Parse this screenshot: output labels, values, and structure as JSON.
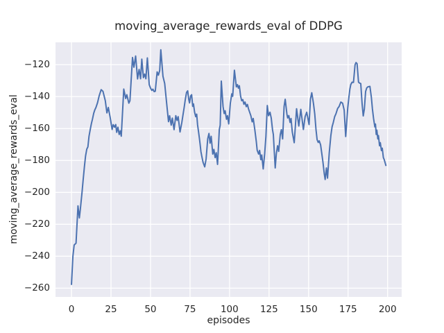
{
  "colors": {
    "figure_bg": "#ffffff",
    "axes_bg": "#eaeaf2",
    "grid": "#ffffff",
    "line": "#4c72b0",
    "text": "#262626"
  },
  "chart_data": {
    "type": "line",
    "title": "moving_average_rewards_eval of DDPG",
    "xlabel": "episodes",
    "ylabel": "moving_average_rewards_eval",
    "x_ticks": [
      0,
      25,
      50,
      75,
      100,
      125,
      150,
      175,
      200
    ],
    "y_ticks": [
      -120,
      -140,
      -160,
      -180,
      -200,
      -220,
      -240,
      -260
    ],
    "xlim": [
      -10.1,
      208.9
    ],
    "ylim": [
      -265.5,
      -106
    ],
    "grid": true,
    "legend": false,
    "series": [
      {
        "name": "moving_average_rewards_eval",
        "color": "#4c72b0",
        "points": [
          [
            0,
            -258
          ],
          [
            0.9,
            -240
          ],
          [
            1.7,
            -233
          ],
          [
            2.9,
            -231.8
          ],
          [
            4.1,
            -208.5
          ],
          [
            5,
            -216
          ],
          [
            5.6,
            -210.6
          ],
          [
            6.7,
            -199.7
          ],
          [
            7.4,
            -192
          ],
          [
            8.2,
            -183.8
          ],
          [
            8.9,
            -177.3
          ],
          [
            9.7,
            -172.9
          ],
          [
            10.4,
            -171.5
          ],
          [
            11.1,
            -164.9
          ],
          [
            11.9,
            -160.6
          ],
          [
            12.6,
            -157
          ],
          [
            13.3,
            -154.1
          ],
          [
            14.1,
            -150.4
          ],
          [
            14.8,
            -148.3
          ],
          [
            15.5,
            -146.8
          ],
          [
            16.5,
            -143.8
          ],
          [
            17.5,
            -139.6
          ],
          [
            18.8,
            -135.7
          ],
          [
            19.9,
            -136.7
          ],
          [
            21.4,
            -142.6
          ],
          [
            22.4,
            -150.2
          ],
          [
            23.3,
            -146.8
          ],
          [
            24.5,
            -153
          ],
          [
            25.7,
            -160.6
          ],
          [
            26.4,
            -157.6
          ],
          [
            27.3,
            -159.2
          ],
          [
            28,
            -157.5
          ],
          [
            28.6,
            -162.4
          ],
          [
            29.4,
            -159.2
          ],
          [
            30.2,
            -163.7
          ],
          [
            30.9,
            -161.5
          ],
          [
            31.5,
            -164.8
          ],
          [
            33.1,
            -135.3
          ],
          [
            34.3,
            -141.2
          ],
          [
            35,
            -138.8
          ],
          [
            36.3,
            -144.1
          ],
          [
            37,
            -142.6
          ],
          [
            38.6,
            -115.5
          ],
          [
            39.5,
            -121.6
          ],
          [
            40.6,
            -114.6
          ],
          [
            41.8,
            -128.9
          ],
          [
            42.8,
            -123
          ],
          [
            43.7,
            -128.8
          ],
          [
            44.5,
            -116.5
          ],
          [
            45.5,
            -128.1
          ],
          [
            46.3,
            -125.9
          ],
          [
            47.1,
            -128.8
          ],
          [
            48,
            -115.8
          ],
          [
            49.2,
            -132.5
          ],
          [
            50,
            -134.6
          ],
          [
            50.8,
            -136.1
          ],
          [
            51.5,
            -135.4
          ],
          [
            52.3,
            -136.9
          ],
          [
            53,
            -136.7
          ],
          [
            54.2,
            -124.5
          ],
          [
            55,
            -126.6
          ],
          [
            55.8,
            -123.7
          ],
          [
            56.5,
            -110.7
          ],
          [
            57.9,
            -127.3
          ],
          [
            59,
            -131.8
          ],
          [
            60.2,
            -144.1
          ],
          [
            61.4,
            -155.7
          ],
          [
            62.1,
            -152
          ],
          [
            63.1,
            -157.9
          ],
          [
            63.8,
            -153.5
          ],
          [
            64.9,
            -160.7
          ],
          [
            66,
            -152
          ],
          [
            66.8,
            -154.9
          ],
          [
            67.5,
            -152.6
          ],
          [
            68.7,
            -162.2
          ],
          [
            69.8,
            -156.2
          ],
          [
            70.6,
            -151.1
          ],
          [
            71.3,
            -146.7
          ],
          [
            72,
            -141.8
          ],
          [
            72.8,
            -137.4
          ],
          [
            73.5,
            -136.4
          ],
          [
            74.2,
            -141.8
          ],
          [
            74.7,
            -144
          ],
          [
            75.4,
            -139.6
          ],
          [
            76,
            -138.8
          ],
          [
            76.7,
            -146.1
          ],
          [
            77.2,
            -144.6
          ],
          [
            77.9,
            -149.7
          ],
          [
            78.6,
            -152.6
          ],
          [
            79.2,
            -151
          ],
          [
            79.8,
            -157.7
          ],
          [
            80.4,
            -162.1
          ],
          [
            80.9,
            -165.7
          ],
          [
            81.4,
            -170
          ],
          [
            81.9,
            -174.4
          ],
          [
            82.4,
            -177.2
          ],
          [
            83.2,
            -181
          ],
          [
            84.3,
            -184
          ],
          [
            85.2,
            -179
          ],
          [
            86.2,
            -166.5
          ],
          [
            87,
            -163.1
          ],
          [
            87.7,
            -169.2
          ],
          [
            88.4,
            -164.9
          ],
          [
            89.4,
            -176
          ],
          [
            90.1,
            -173.1
          ],
          [
            90.9,
            -178.2
          ],
          [
            91.6,
            -175.2
          ],
          [
            92.4,
            -182.5
          ],
          [
            93.5,
            -160.7
          ],
          [
            94.1,
            -157.9
          ],
          [
            94.8,
            -130.3
          ],
          [
            95.9,
            -146.2
          ],
          [
            96.6,
            -150.6
          ],
          [
            97.2,
            -148.9
          ],
          [
            98.1,
            -154.2
          ],
          [
            98.7,
            -152
          ],
          [
            99.5,
            -157.1
          ],
          [
            100.5,
            -144.1
          ],
          [
            101.4,
            -138.3
          ],
          [
            102,
            -139.8
          ],
          [
            103.1,
            -123.5
          ],
          [
            104.3,
            -133.9
          ],
          [
            105,
            -132.5
          ],
          [
            105.6,
            -134.7
          ],
          [
            106.2,
            -133.2
          ],
          [
            107,
            -139.7
          ],
          [
            107.7,
            -142.6
          ],
          [
            108.4,
            -141.9
          ],
          [
            109.1,
            -144.8
          ],
          [
            109.8,
            -143.4
          ],
          [
            110.6,
            -146.3
          ],
          [
            111.3,
            -144.9
          ],
          [
            112,
            -147.7
          ],
          [
            113.5,
            -152
          ],
          [
            114.3,
            -155.8
          ],
          [
            115,
            -153.7
          ],
          [
            116,
            -160.7
          ],
          [
            116.9,
            -168
          ],
          [
            117.5,
            -173.6
          ],
          [
            118.4,
            -176
          ],
          [
            119,
            -173.7
          ],
          [
            119.8,
            -179.6
          ],
          [
            120.4,
            -176.6
          ],
          [
            121.3,
            -185.3
          ],
          [
            122.2,
            -175.8
          ],
          [
            123,
            -165
          ],
          [
            123.9,
            -145.6
          ],
          [
            124.7,
            -152
          ],
          [
            125.6,
            -149.8
          ],
          [
            126.4,
            -153.5
          ],
          [
            127.2,
            -160.7
          ],
          [
            127.7,
            -163.7
          ],
          [
            128.9,
            -184.7
          ],
          [
            129.6,
            -175.8
          ],
          [
            130.4,
            -170.8
          ],
          [
            131.1,
            -174.3
          ],
          [
            132.1,
            -163.7
          ],
          [
            132.8,
            -160.7
          ],
          [
            133.6,
            -166.5
          ],
          [
            134.5,
            -146.2
          ],
          [
            135.2,
            -141.7
          ],
          [
            136.3,
            -151.1
          ],
          [
            136.8,
            -153.4
          ],
          [
            137.5,
            -151.9
          ],
          [
            138.3,
            -156.2
          ],
          [
            138.9,
            -153.7
          ],
          [
            139.7,
            -162.1
          ],
          [
            140.9,
            -168.9
          ],
          [
            142.4,
            -147.6
          ],
          [
            143.8,
            -158.4
          ],
          [
            145.1,
            -148
          ],
          [
            146.7,
            -160.6
          ],
          [
            147.8,
            -152.6
          ],
          [
            148.8,
            -149.8
          ],
          [
            149.5,
            -153.4
          ],
          [
            150.3,
            -157.5
          ],
          [
            151.2,
            -141.5
          ],
          [
            152,
            -137.6
          ],
          [
            153.1,
            -144.5
          ],
          [
            153.9,
            -150.9
          ],
          [
            154.7,
            -160.7
          ],
          [
            155.4,
            -167
          ],
          [
            156.1,
            -168.7
          ],
          [
            156.7,
            -167.7
          ],
          [
            157.6,
            -170.2
          ],
          [
            158.3,
            -175.2
          ],
          [
            159.1,
            -181
          ],
          [
            159.9,
            -188.3
          ],
          [
            160.5,
            -191.9
          ],
          [
            161.3,
            -184.7
          ],
          [
            162,
            -191.1
          ],
          [
            163.1,
            -175.2
          ],
          [
            164.1,
            -164.4
          ],
          [
            164.9,
            -158.9
          ],
          [
            165.6,
            -156.4
          ],
          [
            166.5,
            -152.6
          ],
          [
            167.4,
            -150.6
          ],
          [
            168.4,
            -147.4
          ],
          [
            169.3,
            -146.2
          ],
          [
            170.4,
            -143.4
          ],
          [
            171.5,
            -144.1
          ],
          [
            172.5,
            -148.4
          ],
          [
            173.5,
            -165
          ],
          [
            174.8,
            -146.9
          ],
          [
            175.5,
            -140.4
          ],
          [
            176.1,
            -135.4
          ],
          [
            176.7,
            -132.5
          ],
          [
            177.5,
            -131
          ],
          [
            178.4,
            -131.1
          ],
          [
            179.4,
            -120.1
          ],
          [
            180,
            -118.7
          ],
          [
            180.7,
            -119.4
          ],
          [
            181.6,
            -131
          ],
          [
            182.4,
            -131.6
          ],
          [
            183,
            -131.8
          ],
          [
            183.9,
            -144.8
          ],
          [
            184.6,
            -152.1
          ],
          [
            185.3,
            -147.8
          ],
          [
            186.1,
            -136.8
          ],
          [
            186.8,
            -134.6
          ],
          [
            187.5,
            -133.9
          ],
          [
            188.8,
            -133.6
          ],
          [
            189.7,
            -140.4
          ],
          [
            190.4,
            -147.7
          ],
          [
            191.1,
            -153.5
          ],
          [
            191.9,
            -159
          ],
          [
            192.3,
            -157.2
          ],
          [
            192.8,
            -163.7
          ],
          [
            193.2,
            -161
          ],
          [
            193.8,
            -166.5
          ],
          [
            194.2,
            -164.4
          ],
          [
            194.9,
            -170.8
          ],
          [
            195.4,
            -168.9
          ],
          [
            196.1,
            -173.8
          ],
          [
            196.6,
            -172.3
          ],
          [
            197.3,
            -178.2
          ],
          [
            197.9,
            -179.6
          ],
          [
            198.6,
            -182
          ],
          [
            199,
            -183.5
          ]
        ]
      }
    ]
  }
}
